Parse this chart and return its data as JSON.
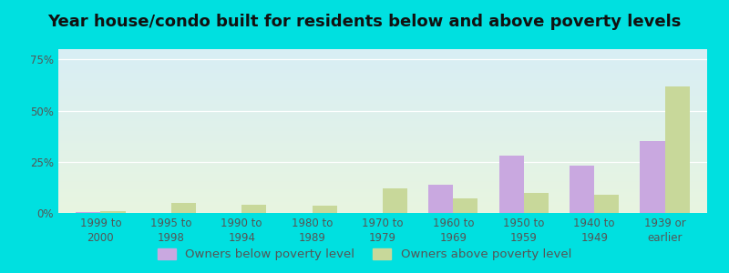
{
  "title": "Year house/condo built for residents below and above poverty levels",
  "categories": [
    "1999 to\n2000",
    "1995 to\n1998",
    "1990 to\n1994",
    "1980 to\n1989",
    "1970 to\n1979",
    "1960 to\n1969",
    "1950 to\n1959",
    "1940 to\n1949",
    "1939 or\nearlier"
  ],
  "below_poverty": [
    0.5,
    0.0,
    0.0,
    0.0,
    0.0,
    14.0,
    28.0,
    23.0,
    35.0
  ],
  "above_poverty": [
    1.0,
    5.0,
    4.0,
    3.5,
    12.0,
    7.0,
    10.0,
    9.0,
    62.0
  ],
  "below_color": "#c9a8e0",
  "above_color": "#c8d89a",
  "bg_top_color": "#d8eef5",
  "bg_bottom_color": "#e8f5e0",
  "outer_bg_color": "#00e0e0",
  "ylabel_ticks": [
    "0%",
    "25%",
    "50%",
    "75%"
  ],
  "yticks": [
    0,
    25,
    50,
    75
  ],
  "ylim": [
    0,
    80
  ],
  "legend_below": "Owners below poverty level",
  "legend_above": "Owners above poverty level",
  "title_fontsize": 13,
  "tick_fontsize": 8.5,
  "legend_fontsize": 9.5
}
